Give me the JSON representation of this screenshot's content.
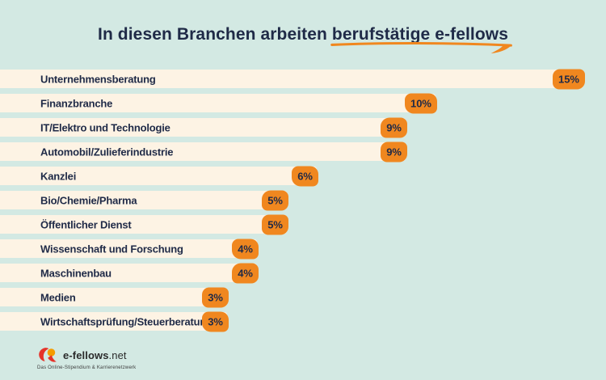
{
  "title": {
    "text": "In diesen Branchen arbeiten berufstätige e-fellows",
    "prefix": "In diesen Branchen arbeiten ",
    "highlight": "berufstätige e-fellows"
  },
  "chart_data": {
    "type": "bar",
    "orientation": "horizontal",
    "title": "In diesen Branchen arbeiten berufstätige e-fellows",
    "unit": "%",
    "categories": [
      "Unternehmensberatung",
      "Finanzbranche",
      "IT/Elektro und Technologie",
      "Automobil/Zulieferindustrie",
      "Kanzlei",
      "Bio/Chemie/Pharma",
      "Öffentlicher Dienst",
      "Wissenschaft und Forschung",
      "Maschinenbau",
      "Medien",
      "Wirtschaftsprüfung/Steuerberatung"
    ],
    "values": [
      15,
      10,
      9,
      9,
      6,
      5,
      5,
      4,
      4,
      3,
      3
    ],
    "value_labels": [
      "15%",
      "10%",
      "9%",
      "9%",
      "6%",
      "5%",
      "5%",
      "4%",
      "4%",
      "3%",
      "3%"
    ],
    "xlim": [
      0,
      16
    ],
    "grid": false,
    "legend": false
  },
  "footer": {
    "logo_name": "e-fellows",
    "logo_suffix": ".net",
    "tagline": "Das Online-Stipendium & Karrierenetzwerk"
  },
  "colors": {
    "background": "#d3e9e3",
    "bar": "#fdf3e4",
    "accent": "#f0871f",
    "ink": "#1f2a47",
    "logo-red": "#e5332a",
    "logo-orange": "#f59c00",
    "logo-text": "#2b2b2b"
  }
}
